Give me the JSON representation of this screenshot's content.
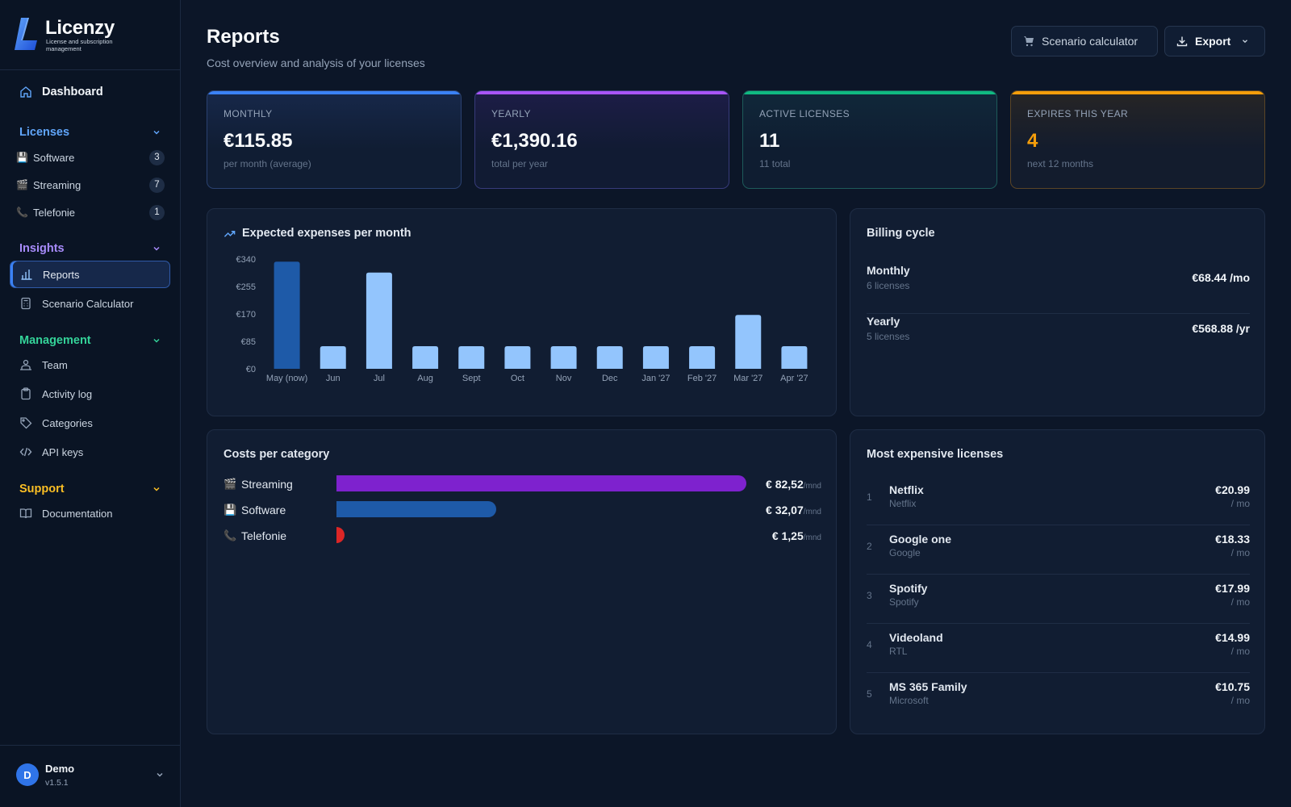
{
  "brand": {
    "name": "Licenzy",
    "tagline": "License and subscription management"
  },
  "sidebar": {
    "dashboard": "Dashboard",
    "sections": {
      "licenses": {
        "label": "Licenses",
        "color": "#60a5fa",
        "items": [
          {
            "emoji": "💾",
            "label": "Software",
            "count": "3"
          },
          {
            "emoji": "🎬",
            "label": "Streaming",
            "count": "7"
          },
          {
            "emoji": "📞",
            "label": "Telefonie",
            "count": "1"
          }
        ]
      },
      "insights": {
        "label": "Insights",
        "color": "#a78bfa",
        "items": [
          {
            "icon": "bar-chart-icon",
            "label": "Reports",
            "active": true
          },
          {
            "icon": "calculator-icon",
            "label": "Scenario Calculator"
          }
        ]
      },
      "management": {
        "label": "Management",
        "color": "#34d399",
        "items": [
          {
            "icon": "team-icon",
            "label": "Team"
          },
          {
            "icon": "clipboard-icon",
            "label": "Activity log"
          },
          {
            "icon": "tag-icon",
            "label": "Categories"
          },
          {
            "icon": "code-icon",
            "label": "API keys"
          }
        ]
      },
      "support": {
        "label": "Support",
        "color": "#fbbf24",
        "items": [
          {
            "icon": "book-icon",
            "label": "Documentation"
          }
        ]
      }
    },
    "user": {
      "initial": "D",
      "name": "Demo",
      "version": "v1.5.1"
    }
  },
  "header": {
    "title": "Reports",
    "subtitle": "Cost overview and analysis of your licenses",
    "scenario_button": "Scenario calculator",
    "export_button": "Export"
  },
  "kpis": [
    {
      "label": "Monthly",
      "value": "€115.85",
      "note": "per month (average)",
      "accent": "#3b82f6"
    },
    {
      "label": "Yearly",
      "value": "€1,390.16",
      "note": "total per year",
      "accent": "#a855f7"
    },
    {
      "label": "Active licenses",
      "value": "11",
      "note": "11 total",
      "accent": "#10b981"
    },
    {
      "label": "Expires this year",
      "value": "4",
      "note": "next 12 months",
      "accent": "#f59e0b"
    }
  ],
  "expenses": {
    "title": "Expected expenses per month",
    "chart_data": {
      "type": "bar",
      "categories": [
        "May (now)",
        "Jun",
        "Jul",
        "Aug",
        "Sept",
        "Oct",
        "Nov",
        "Dec",
        "Jan '27",
        "Feb '27",
        "Mar '27",
        "Apr '27"
      ],
      "values": [
        332,
        70,
        298,
        70,
        70,
        70,
        70,
        70,
        70,
        70,
        167,
        70
      ],
      "ylim": [
        0,
        340
      ],
      "yticks": [
        "€0",
        "€85",
        "€170",
        "€255",
        "€340"
      ],
      "highlight_color": "#1e5aa8",
      "bar_color": "#93c5fd",
      "xlabel": "",
      "ylabel": ""
    }
  },
  "billing": {
    "title": "Billing cycle",
    "rows": [
      {
        "name": "Monthly",
        "count": "6 licenses",
        "amount": "€68.44 /mo"
      },
      {
        "name": "Yearly",
        "count": "5 licenses",
        "amount": "€568.88 /yr"
      }
    ]
  },
  "categories": {
    "title": "Costs per category",
    "unit": "/mnd",
    "rows": [
      {
        "emoji": "🎬",
        "name": "Streaming",
        "amount": "€ 82,52",
        "share": 1.0,
        "color": "#7e22ce"
      },
      {
        "emoji": "💾",
        "name": "Software",
        "amount": "€ 32,07",
        "share": 0.39,
        "color": "#1e5aa8"
      },
      {
        "emoji": "📞",
        "name": "Telefonie",
        "amount": "€ 1,25",
        "share": 0.02,
        "color": "#dc2626"
      }
    ]
  },
  "expensive": {
    "title": "Most expensive licenses",
    "per": "/ mo",
    "rows": [
      {
        "rank": "1",
        "name": "Netflix",
        "vendor": "Netflix",
        "price": "€20.99"
      },
      {
        "rank": "2",
        "name": "Google one",
        "vendor": "Google",
        "price": "€18.33"
      },
      {
        "rank": "3",
        "name": "Spotify",
        "vendor": "Spotify",
        "price": "€17.99"
      },
      {
        "rank": "4",
        "name": "Videoland",
        "vendor": "RTL",
        "price": "€14.99"
      },
      {
        "rank": "5",
        "name": "MS 365 Family",
        "vendor": "Microsoft",
        "price": "€10.75"
      }
    ]
  }
}
